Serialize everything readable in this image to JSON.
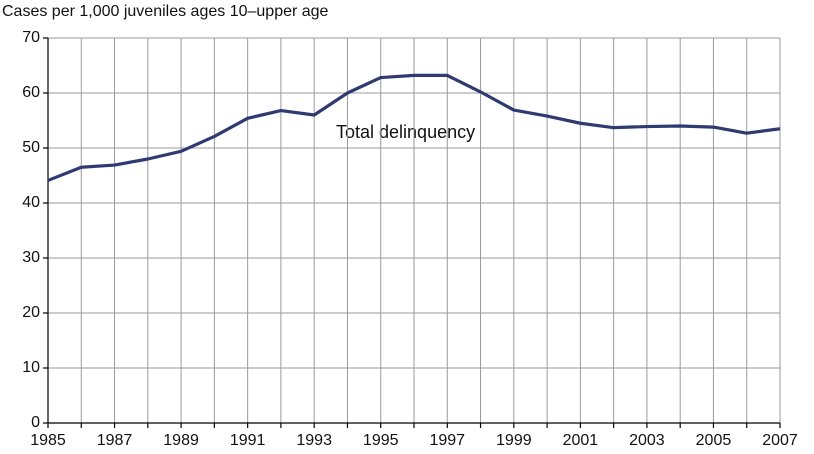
{
  "chart_data": {
    "type": "line",
    "y_axis_label": "Cases per 1,000 juveniles ages 10–upper age",
    "annotation": "Total delinquency",
    "x": [
      1985,
      1986,
      1987,
      1988,
      1989,
      1990,
      1991,
      1992,
      1993,
      1994,
      1995,
      1996,
      1997,
      1998,
      1999,
      2000,
      2001,
      2002,
      2003,
      2004,
      2005,
      2006,
      2007
    ],
    "series": [
      {
        "name": "Total delinquency",
        "color": "#2f3a72",
        "values": [
          44.1,
          46.5,
          46.9,
          48.0,
          49.4,
          52.1,
          55.4,
          56.8,
          56.0,
          60.0,
          62.8,
          63.2,
          63.2,
          60.2,
          56.9,
          55.8,
          54.5,
          53.7,
          53.9,
          54.0,
          53.8,
          52.7,
          53.5
        ]
      }
    ],
    "xlim": [
      1985,
      2007
    ],
    "xticks": [
      1985,
      1987,
      1989,
      1991,
      1993,
      1995,
      1997,
      1999,
      2001,
      2003,
      2005,
      2007
    ],
    "x_minor_ticks": [
      1986,
      1988,
      1990,
      1992,
      1994,
      1996,
      1998,
      2000,
      2002,
      2004,
      2006
    ],
    "ylim": [
      0,
      70
    ],
    "yticks": [
      0,
      10,
      20,
      30,
      40,
      50,
      60,
      70
    ],
    "grid": true
  }
}
